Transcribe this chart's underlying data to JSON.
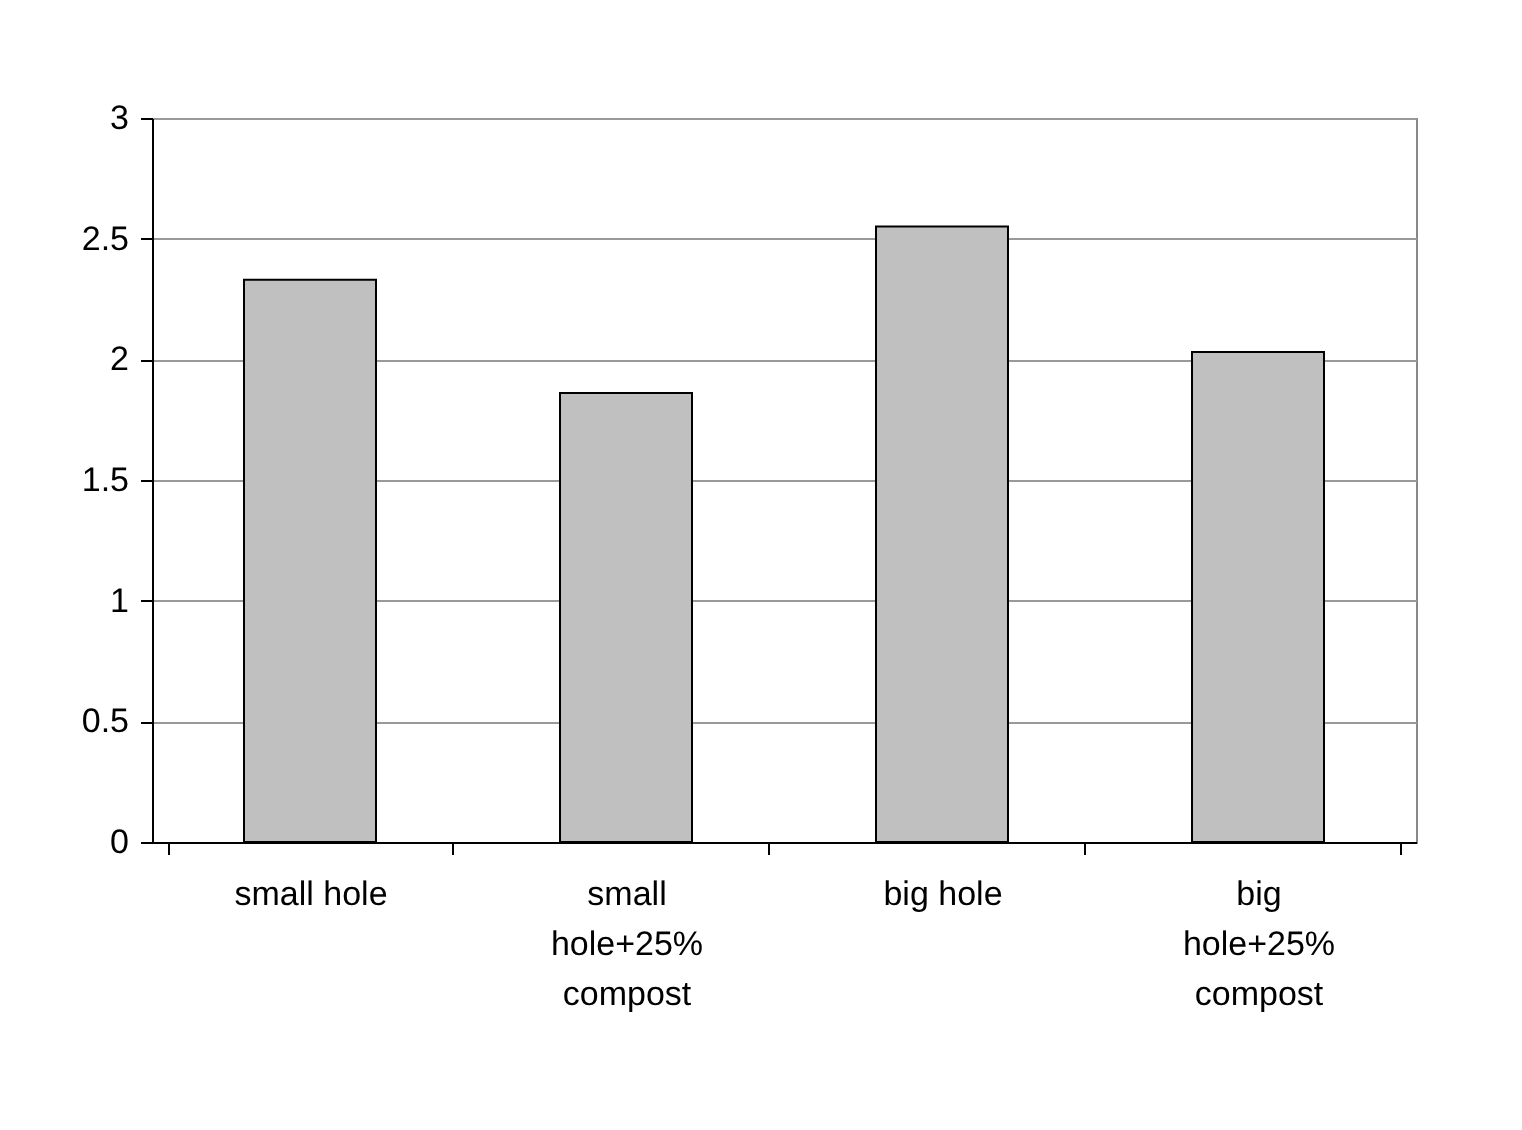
{
  "chart_data": {
    "type": "bar",
    "categories": [
      "small hole",
      "small hole+25% compost",
      "big hole",
      "big hole+25% compost"
    ],
    "values": [
      2.33,
      1.86,
      2.55,
      2.03
    ],
    "color": "#c0c0c0",
    "ylim": [
      0,
      3
    ],
    "yticks": [
      0,
      0.5,
      1,
      1.5,
      2,
      2.5,
      3
    ],
    "grid": "y"
  }
}
